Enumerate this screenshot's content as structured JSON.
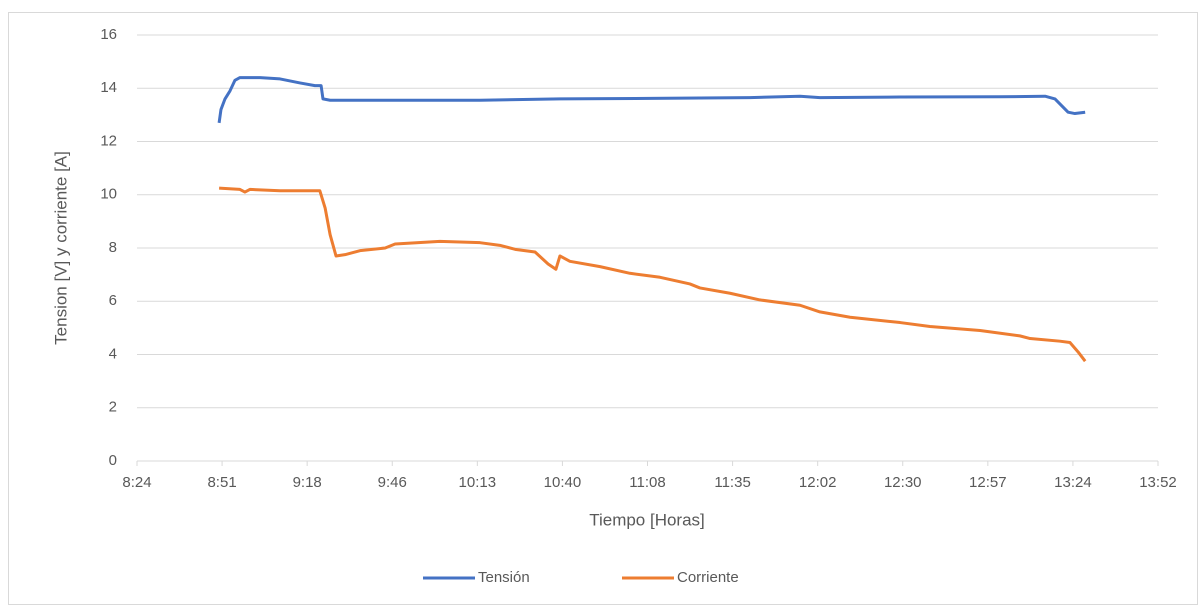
{
  "chart_data": {
    "type": "line",
    "x_label": "Tiempo [Horas]",
    "y_label": "Tension [V] y corriente [A]",
    "xlim": [
      504,
      832.32
    ],
    "xticks": [
      {
        "value": 504,
        "label": "8:24"
      },
      {
        "value": 531.36,
        "label": "8:51"
      },
      {
        "value": 558.72,
        "label": "9:18"
      },
      {
        "value": 586.08,
        "label": "9:46"
      },
      {
        "value": 613.44,
        "label": "10:13"
      },
      {
        "value": 640.8,
        "label": "10:40"
      },
      {
        "value": 668.16,
        "label": "11:08"
      },
      {
        "value": 695.52,
        "label": "11:35"
      },
      {
        "value": 722.88,
        "label": "12:02"
      },
      {
        "value": 750.24,
        "label": "12:30"
      },
      {
        "value": 777.6,
        "label": "12:57"
      },
      {
        "value": 804.96,
        "label": "13:24"
      },
      {
        "value": 832.32,
        "label": "13:52"
      }
    ],
    "ylim": [
      0,
      16
    ],
    "yticks": [
      0,
      2,
      4,
      6,
      8,
      10,
      12,
      14,
      16
    ],
    "grid": true,
    "legend": "bottom",
    "series": [
      {
        "name": "Tensión",
        "color": "#4472c4",
        "x": [
          530.4,
          531.0,
          532.3,
          533.9,
          535.5,
          537.1,
          543.6,
          550.0,
          556.4,
          561.2,
          563.2,
          563.8,
          566.1,
          588.6,
          614.3,
          640.0,
          669.0,
          701.1,
          717.2,
          723.6,
          749.4,
          781.5,
          796.0,
          799.2,
          803.4,
          805.6,
          808.9
        ],
        "values": [
          12.7,
          13.2,
          13.6,
          13.9,
          14.3,
          14.4,
          14.4,
          14.35,
          14.2,
          14.1,
          14.1,
          13.6,
          13.55,
          13.55,
          13.55,
          13.6,
          13.62,
          13.65,
          13.7,
          13.65,
          13.67,
          13.68,
          13.7,
          13.6,
          13.1,
          13.05,
          13.1
        ]
      },
      {
        "name": "Corriente",
        "color": "#ed7d31",
        "x": [
          530.4,
          537.1,
          538.7,
          540.3,
          550.0,
          562.8,
          564.5,
          566.1,
          568.0,
          570.9,
          575.7,
          583.8,
          587.0,
          601.4,
          614.3,
          620.7,
          625.6,
          632.0,
          636.2,
          638.7,
          640.0,
          643.2,
          652.9,
          662.5,
          672.2,
          681.8,
          685.0,
          694.7,
          704.3,
          717.2,
          723.6,
          733.3,
          749.4,
          759.0,
          775.1,
          787.9,
          791.2,
          800.8,
          804.0,
          806.6,
          808.9
        ],
        "values": [
          10.25,
          10.2,
          10.1,
          10.2,
          10.15,
          10.15,
          9.5,
          8.5,
          7.7,
          7.75,
          7.9,
          8.0,
          8.15,
          8.25,
          8.2,
          8.1,
          7.95,
          7.85,
          7.4,
          7.2,
          7.7,
          7.5,
          7.3,
          7.05,
          6.9,
          6.65,
          6.5,
          6.3,
          6.05,
          5.85,
          5.6,
          5.4,
          5.2,
          5.05,
          4.9,
          4.7,
          4.6,
          4.5,
          4.45,
          4.1,
          3.75
        ]
      }
    ]
  }
}
